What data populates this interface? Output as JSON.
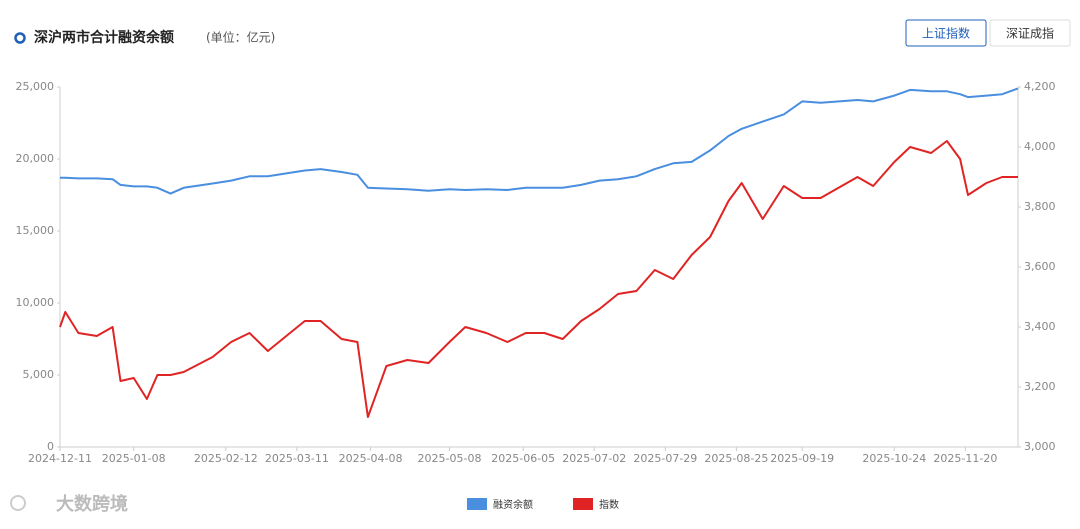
{
  "chart_data": {
    "type": "line",
    "title": "深沪两市合计融资余额",
    "subtitle": "(单位：亿元)",
    "buttons": [
      "上证指数",
      "深证成指"
    ],
    "active_button": 0,
    "watermark": "大数跨境",
    "legend": "bottom",
    "grid": false,
    "x": [
      "2024-12-11",
      "2024-12-13",
      "2024-12-18",
      "2024-12-25",
      "2024-12-31",
      "2025-01-03",
      "2025-01-08",
      "2025-01-13",
      "2025-01-17",
      "2025-01-22",
      "2025-01-27",
      "2025-02-07",
      "2025-02-14",
      "2025-02-21",
      "2025-02-28",
      "2025-03-07",
      "2025-03-14",
      "2025-03-20",
      "2025-03-28",
      "2025-04-03",
      "2025-04-07",
      "2025-04-14",
      "2025-04-22",
      "2025-04-30",
      "2025-05-08",
      "2025-05-14",
      "2025-05-22",
      "2025-05-30",
      "2025-06-06",
      "2025-06-13",
      "2025-06-20",
      "2025-06-27",
      "2025-07-04",
      "2025-07-11",
      "2025-07-18",
      "2025-07-25",
      "2025-08-01",
      "2025-08-08",
      "2025-08-15",
      "2025-08-22",
      "2025-08-27",
      "2025-09-04",
      "2025-09-12",
      "2025-09-19",
      "2025-09-26",
      "2025-10-10",
      "2025-10-16",
      "2025-10-24",
      "2025-10-30",
      "2025-11-07",
      "2025-11-13",
      "2025-11-18",
      "2025-11-21",
      "2025-11-28",
      "2025-12-04",
      "2025-12-10"
    ],
    "xlim": [
      "2024-12-11",
      "2025-12-10"
    ],
    "xticks": [
      "2024-12-11",
      "2025-01-08",
      "2025-02-12",
      "2025-03-11",
      "2025-04-08",
      "2025-05-08",
      "2025-06-05",
      "2025-07-02",
      "2025-07-29",
      "2025-08-25",
      "2025-09-19",
      "2025-10-24",
      "2025-11-20"
    ],
    "ylim": [
      0,
      25000
    ],
    "yticks": [
      0,
      {
        "value": 5000,
        "label": "5,000"
      },
      {
        "value": 10000,
        "label": "10,000"
      },
      {
        "value": 15000,
        "label": "15,000"
      },
      {
        "value": 20000,
        "label": "20,000"
      },
      {
        "value": 25000,
        "label": "25,000"
      }
    ],
    "y2lim": [
      3000,
      4200
    ],
    "y2ticks": [
      {
        "value": 3000,
        "label": "3,000"
      },
      {
        "value": 3200,
        "label": "3,200"
      },
      {
        "value": 3400,
        "label": "3,400"
      },
      {
        "value": 3600,
        "label": "3,600"
      },
      {
        "value": 3800,
        "label": "3,800"
      },
      {
        "value": 4000,
        "label": "4,000"
      },
      {
        "value": 4200,
        "label": "4,200"
      }
    ],
    "series": [
      {
        "name": "融资余额",
        "color": "#4a8ee0",
        "axis": "y",
        "values": [
          18700,
          18700,
          18650,
          18650,
          18600,
          18200,
          18100,
          18100,
          18000,
          17600,
          18000,
          18300,
          18500,
          18800,
          18800,
          19000,
          19200,
          19300,
          19100,
          18900,
          18000,
          17950,
          17900,
          17800,
          17900,
          17850,
          17900,
          17850,
          18000,
          18000,
          18000,
          18200,
          18500,
          18600,
          18800,
          19300,
          19700,
          19800,
          20600,
          21600,
          22100,
          22600,
          23100,
          24000,
          23900,
          24100,
          24000,
          24400,
          24800,
          24700,
          24700,
          24500,
          24300,
          24400,
          24500,
          24900
        ]
      },
      {
        "name": "指数",
        "color": "#e02424",
        "axis": "y2",
        "values": [
          3400,
          3450,
          3380,
          3370,
          3400,
          3220,
          3230,
          3160,
          3240,
          3240,
          3250,
          3300,
          3350,
          3380,
          3320,
          3370,
          3420,
          3420,
          3360,
          3350,
          3100,
          3270,
          3290,
          3280,
          3350,
          3400,
          3380,
          3350,
          3380,
          3380,
          3360,
          3420,
          3460,
          3510,
          3520,
          3590,
          3560,
          3640,
          3700,
          3820,
          3880,
          3760,
          3870,
          3830,
          3830,
          3900,
          3870,
          3950,
          4000,
          3980,
          4020,
          3960,
          3840,
          3880,
          3900,
          3900
        ]
      }
    ]
  }
}
